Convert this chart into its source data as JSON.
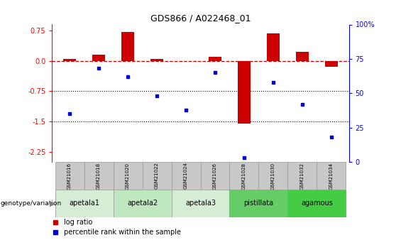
{
  "title": "GDS866 / A022468_01",
  "samples": [
    "GSM21016",
    "GSM21018",
    "GSM21020",
    "GSM21022",
    "GSM21024",
    "GSM21026",
    "GSM21028",
    "GSM21030",
    "GSM21032",
    "GSM21034"
  ],
  "log_ratio": [
    0.05,
    0.15,
    0.72,
    0.04,
    -0.01,
    0.1,
    -1.55,
    0.68,
    0.22,
    -0.15
  ],
  "percentile_rank": [
    35,
    68,
    62,
    48,
    38,
    65,
    3,
    58,
    42,
    18
  ],
  "genotype_groups": [
    {
      "label": "apetala1",
      "start": 0,
      "end": 1,
      "color": "#d4edd4"
    },
    {
      "label": "apetala2",
      "start": 2,
      "end": 3,
      "color": "#bfe8bf"
    },
    {
      "label": "apetala3",
      "start": 4,
      "end": 5,
      "color": "#d4edd4"
    },
    {
      "label": "pistillata",
      "start": 6,
      "end": 7,
      "color": "#66cc66"
    },
    {
      "label": "agamous",
      "start": 8,
      "end": 9,
      "color": "#44cc44"
    }
  ],
  "ylim_left": [
    -2.5,
    0.9
  ],
  "ylim_right": [
    0,
    100
  ],
  "yticks_left": [
    0.75,
    0.0,
    -0.75,
    -1.5,
    -2.25
  ],
  "yticks_right": [
    100,
    75,
    50,
    25,
    0
  ],
  "right_tick_labels": [
    "100%",
    "75",
    "50",
    "25",
    "0"
  ],
  "bar_color": "#cc0000",
  "dot_color": "#0000cc",
  "zero_line_color": "#cc0000",
  "bar_width": 0.45,
  "sample_box_color": "#c8c8c8",
  "sample_box_edge": "#999999",
  "legend_items": [
    {
      "label": "log ratio",
      "color": "#cc0000"
    },
    {
      "label": "percentile rank within the sample",
      "color": "#0000cc"
    }
  ]
}
